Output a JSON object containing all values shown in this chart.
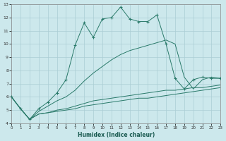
{
  "xlabel": "Humidex (Indice chaleur)",
  "bg_color": "#cce8ec",
  "grid_color": "#aacdd4",
  "line_color": "#2a7a6a",
  "xlim": [
    0,
    23
  ],
  "ylim": [
    4,
    13
  ],
  "yticks": [
    4,
    5,
    6,
    7,
    8,
    9,
    10,
    11,
    12,
    13
  ],
  "xticks": [
    0,
    1,
    2,
    3,
    4,
    5,
    6,
    7,
    8,
    9,
    10,
    11,
    12,
    13,
    14,
    15,
    16,
    17,
    18,
    19,
    20,
    21,
    22,
    23
  ],
  "s1_x": [
    0,
    1,
    2,
    3,
    4,
    5,
    6,
    7,
    8,
    9,
    10,
    11,
    12,
    13,
    14,
    15,
    16,
    17,
    18,
    19,
    20,
    21,
    22,
    23
  ],
  "s1_y": [
    6.0,
    5.1,
    4.3,
    5.1,
    5.6,
    6.3,
    7.3,
    9.9,
    11.6,
    10.5,
    11.9,
    12.0,
    12.8,
    11.9,
    11.7,
    11.7,
    12.2,
    10.0,
    7.4,
    6.6,
    7.3,
    7.5,
    7.4,
    7.4
  ],
  "s2_x": [
    0,
    1,
    2,
    3,
    4,
    5,
    6,
    7,
    8,
    9,
    10,
    11,
    12,
    13,
    14,
    15,
    16,
    17,
    18,
    19,
    20,
    21,
    22,
    23
  ],
  "s2_y": [
    6.0,
    5.1,
    4.3,
    4.9,
    5.3,
    5.7,
    6.0,
    6.5,
    7.2,
    7.8,
    8.3,
    8.8,
    9.2,
    9.5,
    9.7,
    9.9,
    10.1,
    10.3,
    10.0,
    7.5,
    6.6,
    7.3,
    7.5,
    7.4
  ],
  "s3_x": [
    0,
    1,
    2,
    3,
    4,
    5,
    6,
    7,
    8,
    9,
    10,
    11,
    12,
    13,
    14,
    15,
    16,
    17,
    18,
    19,
    20,
    21,
    22,
    23
  ],
  "s3_y": [
    6.0,
    5.1,
    4.3,
    4.7,
    4.8,
    5.0,
    5.1,
    5.3,
    5.5,
    5.7,
    5.8,
    5.9,
    6.0,
    6.1,
    6.2,
    6.3,
    6.4,
    6.5,
    6.5,
    6.6,
    6.7,
    6.7,
    6.8,
    6.9
  ],
  "s4_x": [
    0,
    1,
    2,
    3,
    4,
    5,
    6,
    7,
    8,
    9,
    10,
    11,
    12,
    13,
    14,
    15,
    16,
    17,
    18,
    19,
    20,
    21,
    22,
    23
  ],
  "s4_y": [
    6.0,
    5.1,
    4.3,
    4.7,
    4.8,
    4.9,
    5.0,
    5.1,
    5.3,
    5.4,
    5.5,
    5.6,
    5.7,
    5.8,
    5.9,
    5.9,
    6.0,
    6.1,
    6.2,
    6.3,
    6.4,
    6.5,
    6.6,
    6.7
  ]
}
